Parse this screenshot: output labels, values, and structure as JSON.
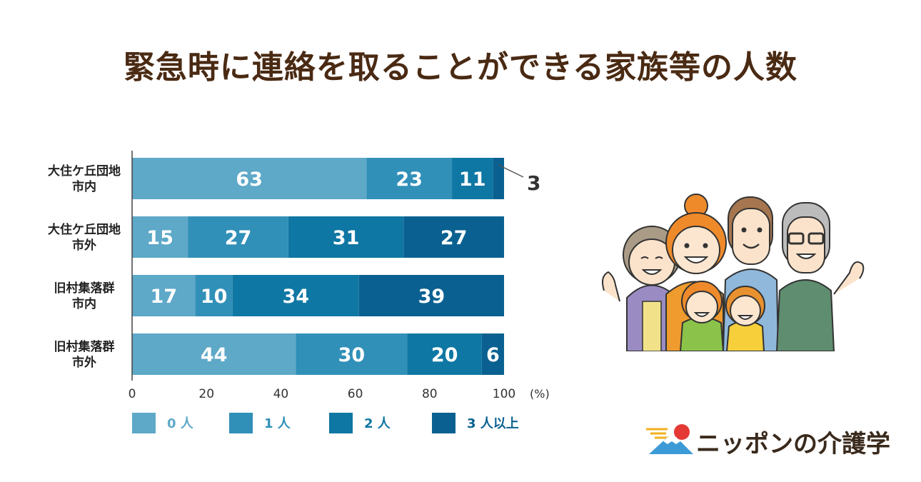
{
  "title": "緊急時に連絡を取ることができる家族等の人数",
  "brand_name": "ニッポンの介護学",
  "chart_data": {
    "type": "bar",
    "orientation": "horizontal",
    "stacked": true,
    "title": "緊急時に連絡を取ることができる家族等の人数",
    "categories": [
      [
        "大住ケ丘団地",
        "市内"
      ],
      [
        "大住ケ丘団地",
        "市外"
      ],
      [
        "旧村集落群",
        "市内"
      ],
      [
        "旧村集落群",
        "市外"
      ]
    ],
    "series": [
      {
        "name": "0 人",
        "color": "#5ea8c8",
        "values": [
          63,
          15,
          17,
          44
        ]
      },
      {
        "name": "1 人",
        "color": "#3190b8",
        "values": [
          23,
          27,
          10,
          30
        ]
      },
      {
        "name": "2 人",
        "color": "#0f77a3",
        "values": [
          11,
          31,
          34,
          20
        ]
      },
      {
        "name": "3 人以上",
        "color": "#0a6191",
        "values": [
          3,
          27,
          39,
          6
        ]
      }
    ],
    "xlim": [
      0,
      100
    ],
    "xticks": [
      "0",
      "20",
      "40",
      "60",
      "80",
      "100"
    ],
    "unit": "(%)",
    "legend_position": "bottom",
    "grid": false,
    "outside_labels": [
      {
        "category_index": 0,
        "series_index": 3,
        "text": "3"
      }
    ]
  },
  "icons": {
    "illustration": "family-illustration-icon",
    "brand_logo": "mount-fuji-sun-logo-icon"
  }
}
